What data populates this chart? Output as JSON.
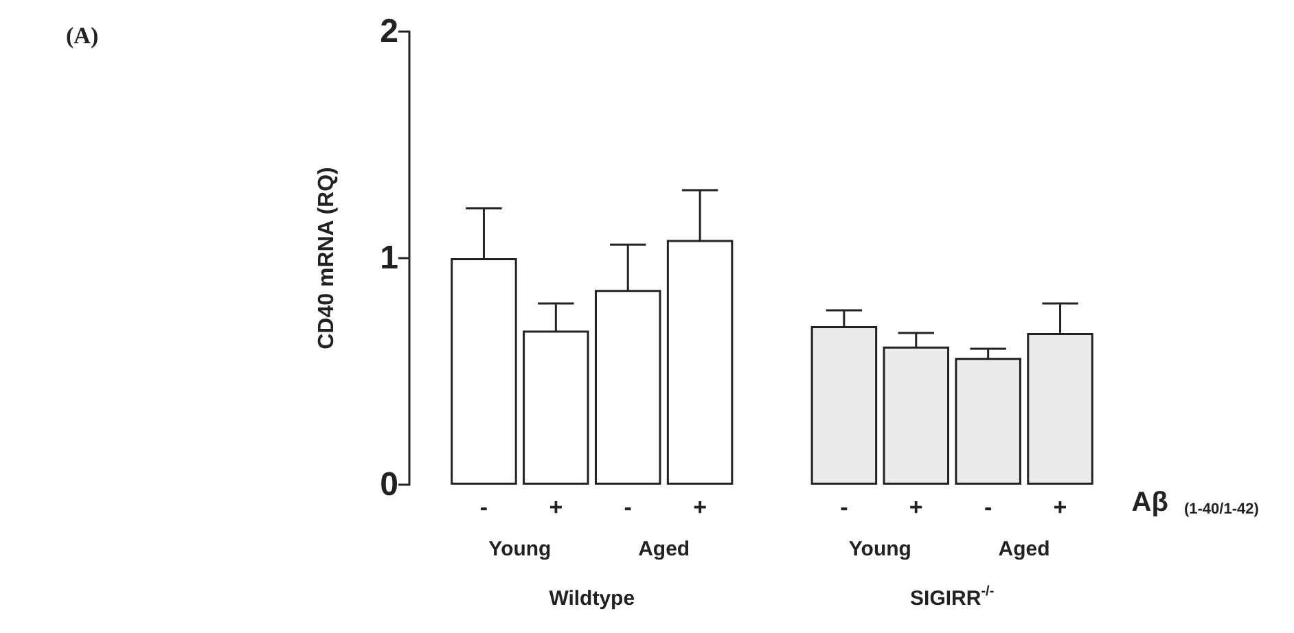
{
  "chart_data": {
    "type": "bar",
    "ylabel": "CD40 mRNA (RQ)",
    "categories": [
      "-",
      "+",
      "-",
      "+",
      null,
      "-",
      "+",
      "-",
      "+"
    ],
    "values": [
      1.0,
      0.68,
      0.86,
      1.08,
      null,
      0.7,
      0.61,
      0.56,
      0.67
    ],
    "errors": [
      0.22,
      0.12,
      0.2,
      0.22,
      null,
      0.07,
      0.06,
      0.04,
      0.13
    ],
    "colors": [
      "#ffffff",
      "#ffffff",
      "#ffffff",
      "#ffffff",
      null,
      "#ebebeb",
      "#ebebeb",
      "#ebebeb",
      "#ebebeb"
    ],
    "ylim": [
      0,
      2
    ],
    "yticks": [
      0,
      1,
      2
    ],
    "grid": false,
    "annotations": [
      "(A)",
      "Aβ $_{(1-40/1-42)}$",
      "Young",
      "Aged",
      "Young",
      "Aged",
      "Wildtype",
      "SIGIRR$^{-/-}$"
    ]
  }
}
